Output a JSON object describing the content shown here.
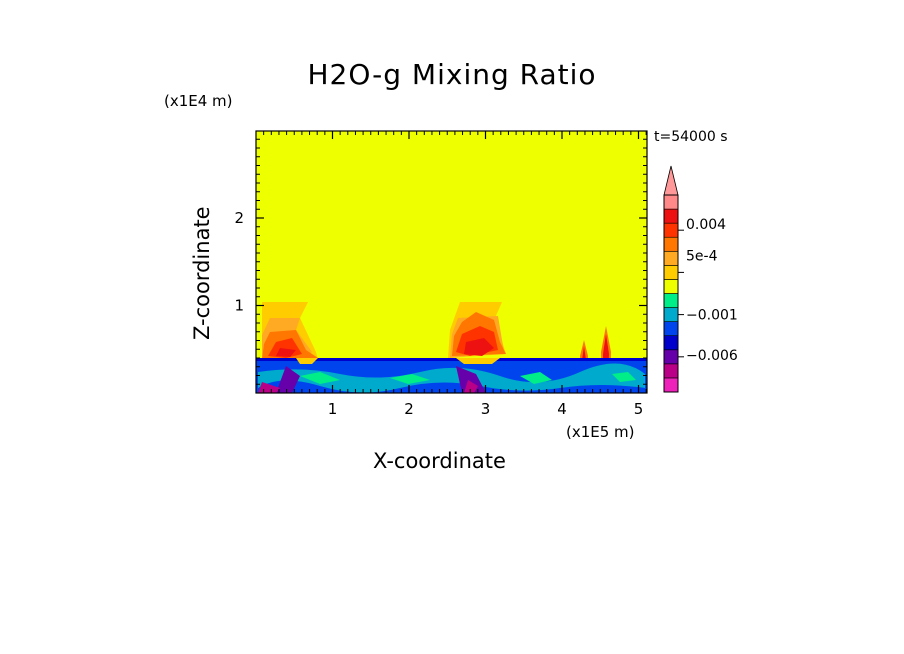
{
  "chart_data": {
    "type": "heatmap",
    "title": "H2O-g Mixing Ratio",
    "xlabel": "X-coordinate",
    "ylabel": "Z-coordinate",
    "x_unit": "(x1E5 m)",
    "z_unit": "(x1E4 m)",
    "time_label": "t=54000 s",
    "xlim": [
      0,
      5.15
    ],
    "ylim": [
      0,
      3.0
    ],
    "x_ticks": [
      "1",
      "2",
      "3",
      "4",
      "5"
    ],
    "y_ticks": [
      "1",
      "2"
    ],
    "colorbar": {
      "colors": [
        "#ee22bb",
        "#bb0088",
        "#6600aa",
        "#0000cc",
        "#0044ee",
        "#00aacc",
        "#00ee88",
        "#eeff00",
        "#ffcc00",
        "#ffaa22",
        "#ff7700",
        "#ff3300",
        "#ee1111",
        "#ff8888"
      ],
      "extend": "max",
      "labels": [
        {
          "text": "0.004"
        },
        {
          "text": "5e-4"
        },
        {
          "text": "−0.001"
        },
        {
          "text": "−0.006"
        }
      ]
    },
    "background_value_color": "#eeff00",
    "features": [
      {
        "name": "plume-1",
        "x_range": [
          0.0,
          0.85
        ],
        "z_top": 1.05
      },
      {
        "name": "plume-2",
        "x_range": [
          2.45,
          3.3
        ],
        "z_top": 1.05
      },
      {
        "name": "plume-3",
        "x_range": [
          4.22,
          4.32
        ],
        "z_top": 0.55
      },
      {
        "name": "plume-4",
        "x_range": [
          4.5,
          4.62
        ],
        "z_top": 0.75
      },
      {
        "name": "boundary-layer",
        "z_top": 0.4
      }
    ]
  }
}
